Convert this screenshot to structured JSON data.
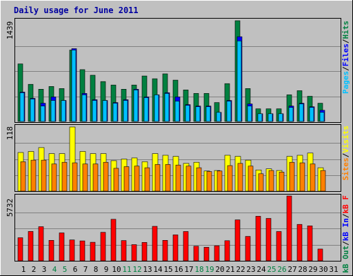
{
  "title": "Daily usage for June 2011",
  "colors": {
    "background": "#c0c0c0",
    "title": "#0000a0",
    "hits": "#008040",
    "files": "#0000ff",
    "pages": "#00c0ff",
    "visits": "#ffff00",
    "sites": "#ff8000",
    "kbytes": "#ff0000",
    "weekend": "#008040",
    "weekday": "#000000"
  },
  "chart_data": [
    {
      "type": "bar",
      "name": "hits-files-pages",
      "categories": [
        "1",
        "2",
        "3",
        "4",
        "5",
        "6",
        "7",
        "8",
        "9",
        "10",
        "11",
        "12",
        "13",
        "14",
        "15",
        "16",
        "17",
        "18",
        "19",
        "20",
        "21",
        "22",
        "23",
        "24",
        "25",
        "26",
        "27",
        "28",
        "29",
        "30",
        "31"
      ],
      "max_label": "1439",
      "ylim": [
        0,
        1439
      ],
      "legend": [
        {
          "label": "Hits",
          "color": "#008040"
        },
        {
          "label": "Files",
          "color": "#0000ff"
        },
        {
          "label": "Pages",
          "color": "#00c0ff"
        }
      ],
      "series": [
        {
          "name": "Hits",
          "values": [
            822,
            530,
            460,
            500,
            470,
            1020,
            740,
            660,
            570,
            520,
            460,
            520,
            650,
            610,
            680,
            590,
            450,
            400,
            400,
            270,
            540,
            1439,
            470,
            180,
            180,
            180,
            380,
            440,
            360,
            260,
            0
          ]
        },
        {
          "name": "Files",
          "values": [
            420,
            330,
            260,
            350,
            300,
            1040,
            400,
            310,
            300,
            270,
            310,
            460,
            350,
            380,
            410,
            350,
            240,
            220,
            220,
            130,
            300,
            1210,
            250,
            110,
            110,
            110,
            220,
            260,
            210,
            160,
            0
          ]
        },
        {
          "name": "Pages",
          "values": [
            410,
            320,
            220,
            300,
            300,
            1020,
            380,
            300,
            300,
            260,
            300,
            450,
            340,
            380,
            400,
            290,
            230,
            210,
            210,
            130,
            290,
            1150,
            220,
            110,
            110,
            110,
            200,
            250,
            200,
            130,
            0
          ]
        }
      ]
    },
    {
      "type": "bar",
      "name": "visits-sites",
      "categories": [
        "1",
        "2",
        "3",
        "4",
        "5",
        "6",
        "7",
        "8",
        "9",
        "10",
        "11",
        "12",
        "13",
        "14",
        "15",
        "16",
        "17",
        "18",
        "19",
        "20",
        "21",
        "22",
        "23",
        "24",
        "25",
        "26",
        "27",
        "28",
        "29",
        "30",
        "31"
      ],
      "max_label": "118",
      "ylim": [
        0,
        118
      ],
      "legend": [
        {
          "label": "Visits",
          "color": "#ffff00"
        },
        {
          "label": "Sites",
          "color": "#ff8000"
        }
      ],
      "series": [
        {
          "name": "Visits",
          "values": [
            71,
            73,
            80,
            69,
            69,
            118,
            73,
            69,
            69,
            56,
            59,
            61,
            54,
            69,
            66,
            64,
            51,
            53,
            37,
            38,
            66,
            64,
            57,
            39,
            41,
            38,
            64,
            66,
            70,
            43,
            0
          ]
        },
        {
          "name": "Sites",
          "values": [
            54,
            57,
            57,
            50,
            53,
            52,
            50,
            50,
            53,
            42,
            45,
            46,
            43,
            49,
            49,
            48,
            46,
            43,
            36,
            37,
            47,
            51,
            46,
            32,
            38,
            35,
            53,
            52,
            50,
            38,
            0
          ]
        }
      ]
    },
    {
      "type": "bar",
      "name": "kbytes",
      "categories": [
        "1",
        "2",
        "3",
        "4",
        "5",
        "6",
        "7",
        "8",
        "9",
        "10",
        "11",
        "12",
        "13",
        "14",
        "15",
        "16",
        "17",
        "18",
        "19",
        "20",
        "21",
        "22",
        "23",
        "24",
        "25",
        "26",
        "27",
        "28",
        "29",
        "30",
        "31"
      ],
      "max_label": "5732",
      "ylim": [
        0,
        5732
      ],
      "legend": [
        {
          "label": "kB F",
          "color": "#ff0000"
        },
        {
          "label": "kB In",
          "color": "#0000ff"
        },
        {
          "label": "kB Out",
          "color": "#008040"
        }
      ],
      "series": [
        {
          "name": "kB F",
          "values": [
            2040,
            2600,
            3020,
            1810,
            2470,
            1850,
            1760,
            1640,
            2520,
            3670,
            1790,
            1430,
            1630,
            3050,
            1810,
            2300,
            2590,
            1290,
            1200,
            1330,
            1780,
            3620,
            2160,
            3940,
            3750,
            2590,
            5732,
            3220,
            3090,
            1040,
            0
          ]
        }
      ]
    }
  ],
  "x_axis": {
    "labels": [
      "1",
      "2",
      "3",
      "4",
      "5",
      "6",
      "7",
      "8",
      "9",
      "10",
      "11",
      "12",
      "13",
      "14",
      "15",
      "16",
      "17",
      "18",
      "19",
      "20",
      "21",
      "22",
      "23",
      "24",
      "25",
      "26",
      "27",
      "28",
      "29",
      "30",
      "31"
    ],
    "weekend": [
      4,
      5,
      11,
      12,
      18,
      19,
      25,
      26
    ]
  }
}
